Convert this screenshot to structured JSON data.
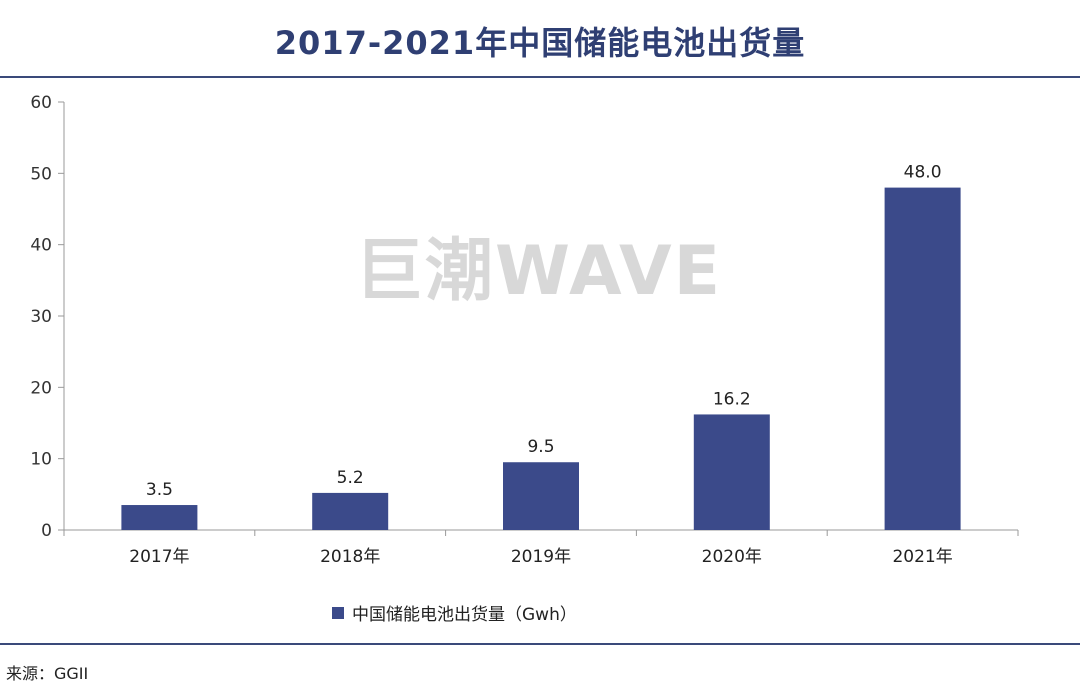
{
  "header": {
    "title": "2017-2021年中国储能电池出货量"
  },
  "footer": {
    "source": "来源：GGII"
  },
  "watermark": {
    "text": "巨潮WAVE"
  },
  "colors": {
    "bar": "#3b4a8a",
    "axis": "#999999",
    "title": "#2f3f73"
  },
  "chart_data": {
    "type": "bar",
    "title": "2017-2021年中国储能电池出货量",
    "categories": [
      "2017年",
      "2018年",
      "2019年",
      "2020年",
      "2021年"
    ],
    "series": [
      {
        "name": "中国储能电池出货量（Gwh）",
        "values": [
          3.5,
          5.2,
          9.5,
          16.2,
          48.0
        ]
      }
    ],
    "value_labels": [
      "3.5",
      "5.2",
      "9.5",
      "16.2",
      "48.0"
    ],
    "ylim": [
      0,
      60
    ],
    "yticks": [
      0,
      10,
      20,
      30,
      40,
      50,
      60
    ],
    "legend_position": "bottom",
    "grid": false
  }
}
